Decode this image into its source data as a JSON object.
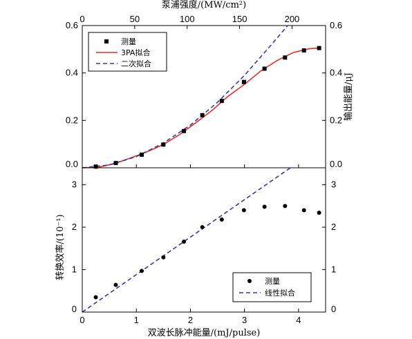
{
  "chart_data": [
    {
      "type": "scatter",
      "top_axis_label": "泵浦强度/(MW/cm²)",
      "top_ticks": [
        0,
        50,
        100,
        150,
        200
      ],
      "top_xlim": [
        0,
        232
      ],
      "right_ylabel": "输出能量/μJ",
      "xlim": [
        0,
        4.5
      ],
      "ylim": [
        0,
        0.6
      ],
      "y_ticks": [
        "0.0",
        "0.2",
        "0.4",
        "0.6"
      ],
      "legend": [
        "测量",
        "3PA拟合",
        "二次拟合"
      ],
      "legend_position": "top-left",
      "series": [
        {
          "name": "测量",
          "style": "square-markers",
          "x": [
            0.25,
            0.62,
            1.1,
            1.5,
            1.88,
            2.22,
            2.58,
            2.99,
            3.37,
            3.75,
            4.1,
            4.38
          ],
          "y": [
            0.005,
            0.02,
            0.055,
            0.098,
            0.155,
            0.222,
            0.282,
            0.362,
            0.418,
            0.465,
            0.495,
            0.505
          ]
        },
        {
          "name": "3PA拟合",
          "style": "solid-line",
          "color": "#e03030",
          "x": [
            0,
            0.3,
            0.6,
            0.9,
            1.2,
            1.5,
            1.8,
            2.1,
            2.4,
            2.7,
            3.0,
            3.3,
            3.6,
            3.9,
            4.2,
            4.38
          ],
          "y": [
            0,
            0.002,
            0.018,
            0.042,
            0.068,
            0.098,
            0.14,
            0.19,
            0.242,
            0.302,
            0.352,
            0.408,
            0.452,
            0.486,
            0.502,
            0.505
          ]
        },
        {
          "name": "二次拟合",
          "style": "dashed-line",
          "color": "#3a3a8c",
          "x": [
            0,
            0.5,
            1.0,
            1.5,
            2.0,
            2.5,
            3.0,
            3.5,
            3.8
          ],
          "y": [
            0,
            0.012,
            0.047,
            0.104,
            0.18,
            0.276,
            0.39,
            0.52,
            0.6
          ]
        }
      ]
    },
    {
      "type": "scatter",
      "xlabel": "双波长脉冲能量/(mJ/pulse)",
      "ylabel": "转换效率/(10⁻¹)",
      "xlim": [
        0,
        4.5
      ],
      "ylim": [
        0,
        3.4
      ],
      "x_ticks": [
        0,
        1,
        2,
        3,
        4
      ],
      "y_ticks": [
        0,
        1,
        2,
        3
      ],
      "legend": [
        "测量",
        "线性拟合"
      ],
      "legend_position": "bottom-right",
      "series": [
        {
          "name": "测量",
          "style": "circle-markers",
          "x": [
            0.25,
            0.62,
            1.1,
            1.5,
            1.88,
            2.22,
            2.58,
            2.99,
            3.37,
            3.75,
            4.1,
            4.38
          ],
          "y": [
            0.35,
            0.64,
            0.97,
            1.29,
            1.66,
            2.0,
            2.18,
            2.4,
            2.48,
            2.5,
            2.4,
            2.34
          ]
        },
        {
          "name": "线性拟合",
          "style": "dashed-line",
          "color": "#3a3a8c",
          "x": [
            0,
            3.85
          ],
          "y": [
            0,
            3.5
          ]
        }
      ]
    }
  ]
}
